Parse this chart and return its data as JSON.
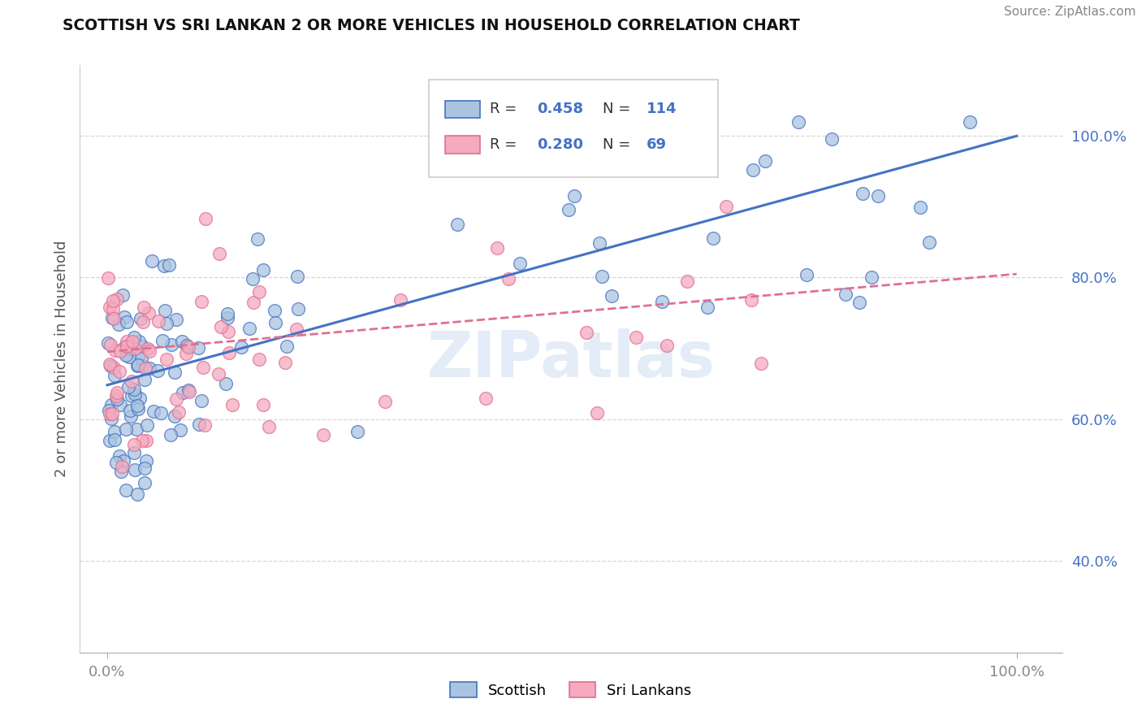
{
  "title": "SCOTTISH VS SRI LANKAN 2 OR MORE VEHICLES IN HOUSEHOLD CORRELATION CHART",
  "source": "Source: ZipAtlas.com",
  "ylabel": "2 or more Vehicles in Household",
  "watermark": "ZIPatlas",
  "legend_label1": "Scottish",
  "legend_label2": "Sri Lankans",
  "r1": 0.458,
  "n1": 114,
  "r2": 0.28,
  "n2": 69,
  "scatter_color_scottish": "#aac4e0",
  "scatter_color_srilankan": "#f5aabf",
  "line_color_scottish": "#4472c4",
  "line_color_srilankan": "#e07090",
  "ytick_color": "#4472c4",
  "xtick_color": "#888888",
  "grid_color": "#cccccc",
  "xlim": [
    -0.03,
    1.05
  ],
  "ylim": [
    0.27,
    1.1
  ],
  "ytick_vals": [
    0.4,
    0.6,
    0.8,
    1.0
  ],
  "ytick_labels": [
    "40.0%",
    "60.0%",
    "80.0%",
    "100.0%"
  ],
  "xtick_vals": [
    0.0,
    1.0
  ],
  "xtick_labels": [
    "0.0%",
    "100.0%"
  ],
  "line_s_x0": 0.0,
  "line_s_y0": 0.648,
  "line_s_x1": 1.0,
  "line_s_y1": 1.0,
  "line_sl_x0": 0.0,
  "line_sl_y0": 0.695,
  "line_sl_x1": 1.0,
  "line_sl_y1": 0.805
}
